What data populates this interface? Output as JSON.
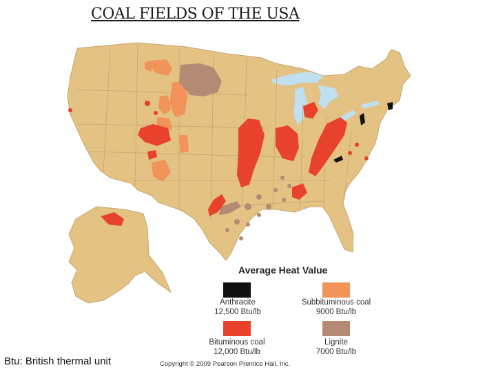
{
  "title": "COAL FIELDS OF THE USA",
  "legend": {
    "title": "Average Heat Value",
    "items": [
      {
        "name": "Anthracite",
        "value": "12,500 Btu/lb",
        "color": "#111111"
      },
      {
        "name": "Subbituminous coal",
        "value": "9000 Btu/lb",
        "color": "#f2935a"
      },
      {
        "name": "Bituminous coal",
        "value": "12,000 Btu/lb",
        "color": "#e8412c"
      },
      {
        "name": "Lignite",
        "value": "7000 Btu/lb",
        "color": "#b48a74"
      }
    ]
  },
  "footnote": "Btu: British thermal unit",
  "copyright": "Copyright © 2009 Pearson Prentice Hall, Inc.",
  "colors": {
    "land": "#e3c283",
    "state_border": "#c6a66d",
    "water": "#bfe0f0"
  }
}
